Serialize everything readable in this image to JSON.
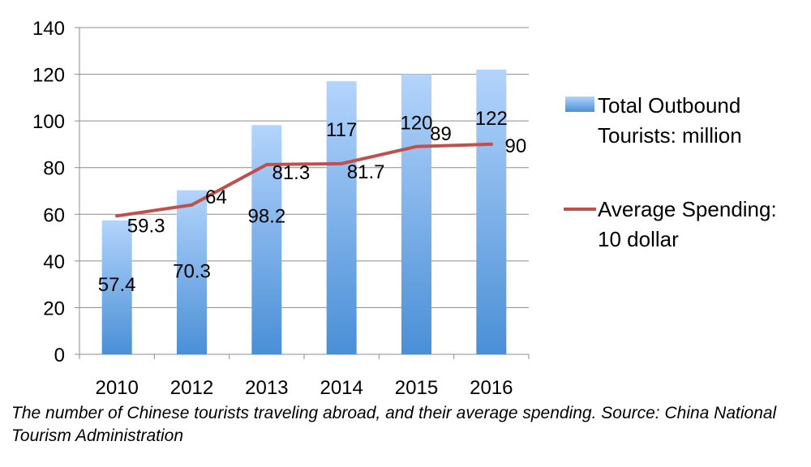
{
  "chart_data": {
    "type": "bar",
    "categories": [
      "2010",
      "2012",
      "2013",
      "2014",
      "2015",
      "2016"
    ],
    "series": [
      {
        "name": "Total Outbound Tourists: million",
        "type": "bar",
        "color": "#5b9bd5",
        "values": [
          57.4,
          70.3,
          98.2,
          117,
          120,
          122
        ],
        "labels": [
          "57.4",
          "70.3",
          "98.2",
          "117",
          "120",
          "122"
        ]
      },
      {
        "name": "Average Spending: 10 dollar",
        "type": "line",
        "color": "#c0504d",
        "values": [
          59.3,
          64,
          81.3,
          81.7,
          89,
          90
        ],
        "labels": [
          "59.3",
          "64",
          "81.3",
          "81.7",
          "89",
          "90"
        ]
      }
    ],
    "yticks": [
      "0",
      "20",
      "40",
      "60",
      "80",
      "100",
      "120",
      "140"
    ],
    "ylim": [
      0,
      140
    ],
    "grid": true,
    "legend_position": "right",
    "legend": {
      "bar": [
        "Total Outbound",
        "Tourists: million"
      ],
      "line": [
        "Average Spending:",
        "10 dollar"
      ]
    }
  },
  "caption": "The number of Chinese tourists traveling abroad, and their average spending. Source: China National Tourism Administration"
}
